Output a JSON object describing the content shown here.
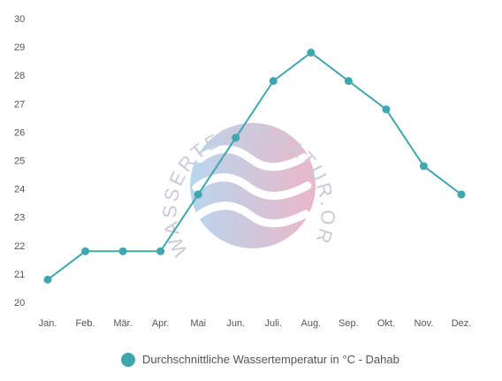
{
  "chart_data": {
    "type": "line",
    "categories": [
      "Jan.",
      "Feb.",
      "Mär.",
      "Apr.",
      "Mai",
      "Jun.",
      "Juli.",
      "Aug.",
      "Sep.",
      "Okt.",
      "Nov.",
      "Dez."
    ],
    "series": [
      {
        "name": "Durchschnittliche Wassertemperatur in °C - Dahab",
        "values": [
          20.8,
          21.8,
          21.8,
          21.8,
          23.8,
          25.8,
          27.8,
          28.8,
          27.8,
          26.8,
          24.8,
          23.8
        ]
      }
    ],
    "ylim": [
      20,
      30
    ],
    "yticks": [
      20,
      21,
      22,
      23,
      24,
      25,
      26,
      27,
      28,
      29,
      30
    ],
    "grid": false,
    "legend": "bottom-center",
    "line_color": "#3fa7ae"
  },
  "watermark": {
    "text": "WASSERTEMPERATUR.ORG",
    "color_left": "#b8d6ee",
    "color_right": "#eab7c8",
    "text_color": "#c9ccd6"
  }
}
